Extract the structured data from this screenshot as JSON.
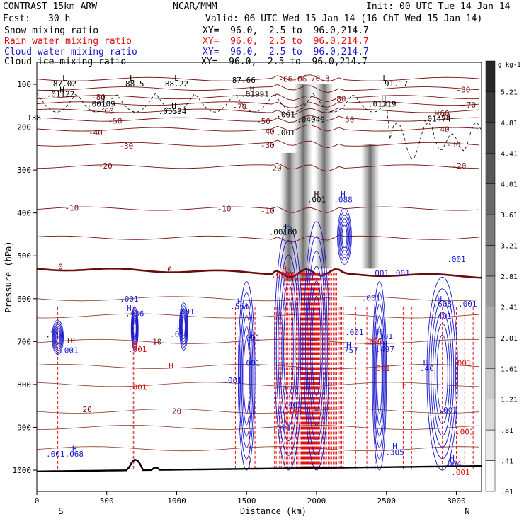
{
  "header": {
    "model": "CONTRAST 15km ARW",
    "org": "NCAR/MMM",
    "init": "Init: 00 UTC Tue 14 Jan 14",
    "fcst_label": "Fcst:",
    "fcst_value": "30 h",
    "valid": "Valid: 06 UTC Wed 15 Jan 14 (16 ChT Wed 15 Jan 14)"
  },
  "legend": [
    {
      "label": "Snow mixing ratio",
      "xy": "XY=  96.0,  2.5 to  96.0,214.7",
      "color": "#000000"
    },
    {
      "label": "Rain water mixing ratio",
      "xy": "XY=  96.0,  2.5 to  96.0,214.7",
      "color": "#e01010"
    },
    {
      "label": "Cloud water mixing ratio",
      "xy": "XY=  96.0,  2.5 to  96.0,214.7",
      "color": "#1818d0"
    },
    {
      "label": "Cloud ice mixing ratio",
      "xy": "XY=  96.0,  2.5 to  96.0,214.7",
      "color": "#000000"
    }
  ],
  "chart_data": {
    "type": "cross-section",
    "xlabel": "Distance (km)",
    "ylabel": "Pressure (hPa)",
    "xlim": [
      0,
      3180
    ],
    "ylim": [
      1030,
      50
    ],
    "x_ticks": [
      0,
      500,
      1000,
      1500,
      2000,
      2500,
      3000
    ],
    "y_ticks": [
      100,
      200,
      300,
      400,
      500,
      600,
      700,
      800,
      900,
      1000
    ],
    "x_end_labels": {
      "left": "S",
      "right": "N"
    },
    "colorbar": {
      "unit": "g kg-1",
      "levels": [
        "5.21",
        "4.81",
        "4.41",
        "4.01",
        "3.61",
        "3.21",
        "2.81",
        "2.41",
        "2.01",
        "1.61",
        "1.21",
        ".81",
        ".41",
        ".01"
      ]
    },
    "temperature_contours": [
      {
        "label": "-80",
        "p": 110
      },
      {
        "label": "-70",
        "p": 145
      },
      {
        "label": "-60",
        "p": 162
      },
      {
        "label": "-50",
        "p": 182
      },
      {
        "label": "-40",
        "p": 205
      },
      {
        "label": "-30",
        "p": 240
      },
      {
        "label": "-20",
        "p": 292
      },
      {
        "label": "-10",
        "p": 390
      },
      {
        "label": "0",
        "p": 525
      },
      {
        "label": "10",
        "p": 700
      },
      {
        "label": "20",
        "p": 862
      }
    ],
    "top_temperature_labels": [
      {
        "label": "-80",
        "x": 440,
        "p": 130
      },
      {
        "label": "-70",
        "x": 1450,
        "p": 152
      },
      {
        "label": "-60",
        "x": 500,
        "p": 162
      },
      {
        "label": "-50",
        "x": 560,
        "p": 185
      },
      {
        "label": "-40",
        "x": 420,
        "p": 212
      },
      {
        "label": "-30",
        "x": 640,
        "p": 244
      },
      {
        "label": "-20",
        "x": 490,
        "p": 290
      },
      {
        "label": "-10",
        "x": 250,
        "p": 388
      },
      {
        "label": "0",
        "x": 170,
        "p": 525
      },
      {
        "label": "10",
        "x": 240,
        "p": 698
      },
      {
        "label": "20",
        "x": 360,
        "p": 858
      },
      {
        "label": "-66.06",
        "x": 1830,
        "p": 88
      },
      {
        "label": "-70.3",
        "x": 2010,
        "p": 86
      },
      {
        "label": "-80",
        "x": 3050,
        "p": 112
      },
      {
        "label": "-70",
        "x": 3090,
        "p": 148
      },
      {
        "label": "-60",
        "x": 2910,
        "p": 175
      },
      {
        "label": "-50",
        "x": 2220,
        "p": 182
      },
      {
        "label": "-40",
        "x": 2900,
        "p": 205
      },
      {
        "label": "-30",
        "x": 2980,
        "p": 240
      },
      {
        "label": "-20",
        "x": 3020,
        "p": 290
      },
      {
        "label": "-10",
        "x": 1340,
        "p": 390
      },
      {
        "label": "0",
        "x": 950,
        "p": 532
      },
      {
        "label": "10",
        "x": 860,
        "p": 700
      },
      {
        "label": "20",
        "x": 1000,
        "p": 862
      },
      {
        "label": "-10",
        "x": 1650,
        "p": 395
      },
      {
        "label": "-20",
        "x": 1700,
        "p": 296
      },
      {
        "label": "-30",
        "x": 1650,
        "p": 242
      },
      {
        "label": "-40",
        "x": 1650,
        "p": 210
      },
      {
        "label": "-50",
        "x": 1620,
        "p": 186
      },
      {
        "label": "-60",
        "x": 2900,
        "p": 168
      },
      {
        "label": "-80",
        "x": 2160,
        "p": 134
      }
    ],
    "field_annotations": [
      {
        "text": "L",
        "x": 200,
        "p": 85,
        "color": "#000000"
      },
      {
        "text": "87.02",
        "x": 200,
        "p": 98,
        "color": "#000000"
      },
      {
        "text": "H",
        "x": 180,
        "p": 112,
        "color": "#000000"
      },
      {
        "text": ".01122",
        "x": 170,
        "p": 122,
        "color": "#000000"
      },
      {
        "text": "L",
        "x": 680,
        "p": 85,
        "color": "#000000"
      },
      {
        "text": "88.5",
        "x": 700,
        "p": 98,
        "color": "#000000"
      },
      {
        "text": "L",
        "x": 1000,
        "p": 85,
        "color": "#000000"
      },
      {
        "text": "88.22",
        "x": 1000,
        "p": 98,
        "color": "#000000"
      },
      {
        "text": "H",
        "x": 470,
        "p": 132,
        "color": "#000000"
      },
      {
        "text": ".00109",
        "x": 460,
        "p": 145,
        "color": "#000000"
      },
      {
        "text": "H",
        "x": 980,
        "p": 150,
        "color": "#000000"
      },
      {
        "text": ".05594",
        "x": 970,
        "p": 163,
        "color": "#000000"
      },
      {
        "text": "87.66",
        "x": 1480,
        "p": 90,
        "color": "#000000"
      },
      {
        "text": "H",
        "x": 1540,
        "p": 110,
        "color": "#000000"
      },
      {
        "text": ".01991",
        "x": 1560,
        "p": 122,
        "color": "#000000"
      },
      {
        "text": ".001",
        "x": 1780,
        "p": 170,
        "color": "#000000"
      },
      {
        "text": ".001",
        "x": 1780,
        "p": 212,
        "color": "#000000"
      },
      {
        "text": ".04049",
        "x": 1960,
        "p": 182,
        "color": "#000000"
      },
      {
        "text": "L",
        "x": 2490,
        "p": 85,
        "color": "#000000"
      },
      {
        "text": "91.17",
        "x": 2570,
        "p": 98,
        "color": "#000000"
      },
      {
        "text": "H",
        "x": 2480,
        "p": 132,
        "color": "#000000"
      },
      {
        "text": ".01319",
        "x": 2470,
        "p": 145,
        "color": "#000000"
      },
      {
        "text": "H",
        "x": 2860,
        "p": 168,
        "color": "#000000"
      },
      {
        "text": ".01474",
        "x": 2860,
        "p": 180,
        "color": "#000000"
      },
      {
        "text": "138",
        "x": -20,
        "p": 178,
        "color": "#000000"
      },
      {
        "text": "H",
        "x": 2000,
        "p": 356,
        "color": "#000000"
      },
      {
        "text": ".001",
        "x": 2000,
        "p": 368,
        "color": "#000000"
      },
      {
        "text": "H",
        "x": 1770,
        "p": 432,
        "color": "#000000"
      },
      {
        "text": ".00180",
        "x": 1760,
        "p": 444,
        "color": "#000000"
      },
      {
        "text": "H",
        "x": 2190,
        "p": 356,
        "color": "#1818d0"
      },
      {
        "text": ".088",
        "x": 2190,
        "p": 368,
        "color": "#1818d0"
      },
      {
        "text": "H",
        "x": 1770,
        "p": 530,
        "color": "#e01010"
      },
      {
        "text": ".0044",
        "x": 1760,
        "p": 544,
        "color": "#e01010"
      },
      {
        "text": ".001",
        "x": 2450,
        "p": 540,
        "color": "#1818d0"
      },
      {
        "text": ".001",
        "x": 2600,
        "p": 540,
        "color": "#1818d0"
      },
      {
        "text": ".001",
        "x": 3000,
        "p": 508,
        "color": "#1818d0"
      },
      {
        "text": ".001",
        "x": 660,
        "p": 600,
        "color": "#1818d0"
      },
      {
        "text": "H",
        "x": 660,
        "p": 622,
        "color": "#1818d0"
      },
      {
        "text": ".436",
        "x": 700,
        "p": 634,
        "color": "#1818d0"
      },
      {
        "text": "H",
        "x": 120,
        "p": 672,
        "color": "#1818d0"
      },
      {
        "text": ".714",
        "x": 130,
        "p": 684,
        "color": "#1818d0"
      },
      {
        "text": ".001",
        "x": 230,
        "p": 720,
        "color": "#1818d0"
      },
      {
        "text": ".001",
        "x": 1060,
        "p": 630,
        "color": "#1818d0"
      },
      {
        "text": "H",
        "x": 1020,
        "p": 670,
        "color": "#1818d0"
      },
      {
        "text": ".051",
        "x": 1020,
        "p": 682,
        "color": "#1818d0"
      },
      {
        "text": "H",
        "x": 1450,
        "p": 606,
        "color": "#1818d0"
      },
      {
        "text": ".561",
        "x": 1450,
        "p": 618,
        "color": "#1818d0"
      },
      {
        "text": ".001",
        "x": 2390,
        "p": 598,
        "color": "#1818d0"
      },
      {
        "text": "H",
        "x": 2450,
        "p": 676,
        "color": "#1818d0"
      },
      {
        "text": ".001",
        "x": 2480,
        "p": 688,
        "color": "#1818d0"
      },
      {
        "text": "H",
        "x": 2230,
        "p": 708,
        "color": "#1818d0"
      },
      {
        "text": ".757",
        "x": 2230,
        "p": 720,
        "color": "#1818d0"
      },
      {
        "text": "H",
        "x": 2490,
        "p": 706,
        "color": "#1818d0"
      },
      {
        "text": ".497",
        "x": 2490,
        "p": 718,
        "color": "#1818d0"
      },
      {
        "text": ".001",
        "x": 1530,
        "p": 690,
        "color": "#1818d0"
      },
      {
        "text": ".001",
        "x": 1530,
        "p": 750,
        "color": "#1818d0"
      },
      {
        "text": ".001",
        "x": 1400,
        "p": 790,
        "color": "#1818d0"
      },
      {
        "text": ".401",
        "x": 1830,
        "p": 848,
        "color": "#1818d0"
      },
      {
        "text": ".001",
        "x": 2270,
        "p": 678,
        "color": "#1818d0"
      },
      {
        "text": "H",
        "x": 2880,
        "p": 600,
        "color": "#1818d0"
      },
      {
        "text": ".608",
        "x": 2900,
        "p": 612,
        "color": "#1818d0"
      },
      {
        "text": ".401",
        "x": 2900,
        "p": 640,
        "color": "#1818d0"
      },
      {
        "text": ".001",
        "x": 3080,
        "p": 612,
        "color": "#1818d0"
      },
      {
        "text": "H",
        "x": 2780,
        "p": 750,
        "color": "#1818d0"
      },
      {
        "text": ".40",
        "x": 2790,
        "p": 762,
        "color": "#1818d0"
      },
      {
        "text": ".001",
        "x": 2940,
        "p": 860,
        "color": "#1818d0"
      },
      {
        "text": ".001",
        "x": 1750,
        "p": 900,
        "color": "#1818d0"
      },
      {
        "text": "H",
        "x": 2560,
        "p": 944,
        "color": "#1818d0"
      },
      {
        "text": ".305",
        "x": 2560,
        "p": 958,
        "color": "#1818d0"
      },
      {
        "text": "H",
        "x": 2970,
        "p": 972,
        "color": "#1818d0"
      },
      {
        "text": ".064",
        "x": 2970,
        "p": 984,
        "color": "#1818d0"
      },
      {
        "text": "H",
        "x": 270,
        "p": 950,
        "color": "#1818d0"
      },
      {
        "text": ".001,068",
        "x": 200,
        "p": 962,
        "color": "#1818d0"
      },
      {
        "text": "H",
        "x": 1780,
        "p": 884,
        "color": "#e01010"
      },
      {
        "text": ".146",
        "x": 1830,
        "p": 862,
        "color": "#e01010"
      },
      {
        "text": "H",
        "x": 700,
        "p": 705,
        "color": "#e01010"
      },
      {
        "text": ".001",
        "x": 720,
        "p": 718,
        "color": "#e01010"
      },
      {
        "text": ".001",
        "x": 720,
        "p": 806,
        "color": "#e01010"
      },
      {
        "text": "H",
        "x": 960,
        "p": 756,
        "color": "#e01010"
      },
      {
        "text": ".286",
        "x": 2400,
        "p": 700,
        "color": "#e01010"
      },
      {
        "text": ".001",
        "x": 2460,
        "p": 762,
        "color": "#e01010"
      },
      {
        "text": "H",
        "x": 2630,
        "p": 800,
        "color": "#e01010"
      },
      {
        "text": ".001",
        "x": 3040,
        "p": 750,
        "color": "#e01010"
      },
      {
        "text": ".001",
        "x": 3030,
        "p": 1005,
        "color": "#e01010"
      },
      {
        "text": ".001",
        "x": 3060,
        "p": 910,
        "color": "#e01010"
      },
      {
        "text": "H",
        "x": 120,
        "p": 710,
        "color": "#e01010"
      }
    ],
    "freezing_level": {
      "p_start": 530,
      "p_end": 548
    },
    "terrain": {
      "p_base": 1003
    }
  }
}
